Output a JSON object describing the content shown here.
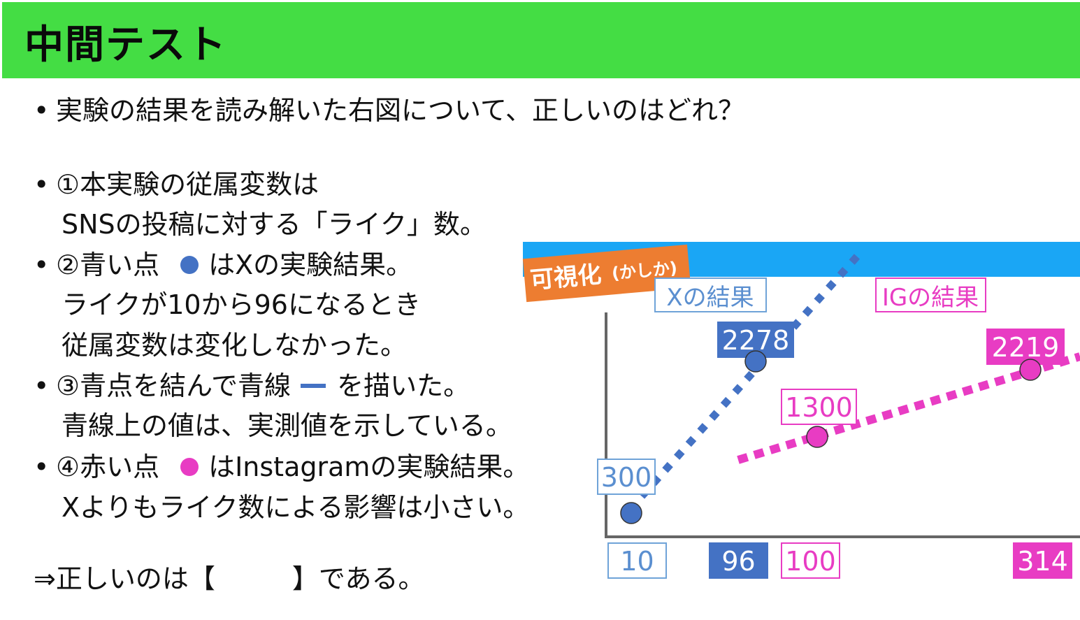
{
  "header": {
    "title": "中間テスト"
  },
  "question": "実験の結果を読み解いた右図について、正しいのはどれ？",
  "options": [
    {
      "lines": [
        "①本実験の従属変数は",
        "SNSの投稿に対する「ライク」数。"
      ]
    },
    {
      "lines": [
        "②青い点",
        "はXの実験結果。",
        "ライクが10から96になるとき",
        "従属変数は変化しなかった。"
      ]
    },
    {
      "lines": [
        "③青点を結んで青線",
        "を描いた。",
        "青線上の値は、実測値を示している。"
      ]
    },
    {
      "lines": [
        "④赤い点",
        "はInstagramの実験結果。",
        "Xよりもライク数による影響は小さい。"
      ]
    }
  ],
  "answer": {
    "prefix": "⇒正しいのは【",
    "suffix": "】である。"
  },
  "colors": {
    "header": "#44dd44",
    "blue": "#4472c4",
    "magenta": "#e83cc3",
    "banner": "#1aa6f5",
    "tag": "#ed7d31"
  },
  "chart_data": {
    "type": "scatter",
    "tag": "可視化",
    "tag_ruby": "(かしか)",
    "series": [
      {
        "name": "Xの結果",
        "x": [
          10,
          96
        ],
        "y": [
          300,
          2278
        ],
        "x_labels": [
          "10",
          "96"
        ],
        "y_labels": [
          "300",
          "2278"
        ]
      },
      {
        "name": "IGの結果",
        "x": [
          100,
          314
        ],
        "y": [
          1300,
          2219
        ],
        "x_labels": [
          "100",
          "314"
        ],
        "y_labels": [
          "1300",
          "2219"
        ]
      }
    ],
    "grid": false,
    "legend": "top"
  }
}
